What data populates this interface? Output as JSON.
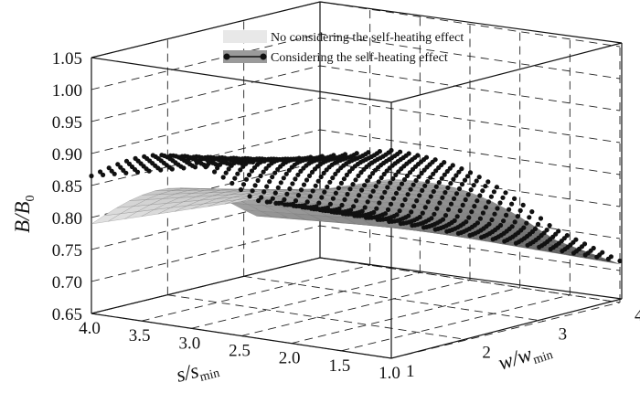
{
  "chart_data": {
    "type": "surface3d",
    "zlabel": "B/B",
    "zlabel_sub": "0",
    "xlabel": "s/s",
    "xlabel_sub": "min",
    "ylabel": "w/w",
    "ylabel_sub": "min",
    "z_ticks": [
      "0.65",
      "0.70",
      "0.75",
      "0.80",
      "0.85",
      "0.90",
      "0.95",
      "1.00",
      "1.05"
    ],
    "x_ticks": [
      "4.0",
      "3.5",
      "3.0",
      "2.5",
      "2.0",
      "1.5",
      "1.0"
    ],
    "y_ticks": [
      "1",
      "2",
      "3",
      "4"
    ],
    "zlim": [
      0.65,
      1.05
    ],
    "xlim": [
      1.0,
      4.0
    ],
    "ylim": [
      1,
      4
    ],
    "grid": true,
    "legend_position": "top",
    "series": [
      {
        "name": "No considering the self-heating effect",
        "color": "#d8d8d8",
        "marker": "surface",
        "corner_values": {
          "s4_w1": 0.79,
          "s1_w1": 0.93,
          "s1_w4": 0.71,
          "s4_w4": 0.72
        }
      },
      {
        "name": "Considering the self-heating effect",
        "color": "#111111",
        "marker": "dot",
        "corner_values": {
          "s4_w1": 0.85,
          "s1_w1": 0.96,
          "s1_w4": 0.7,
          "s4_w4": 0.71
        }
      }
    ]
  }
}
